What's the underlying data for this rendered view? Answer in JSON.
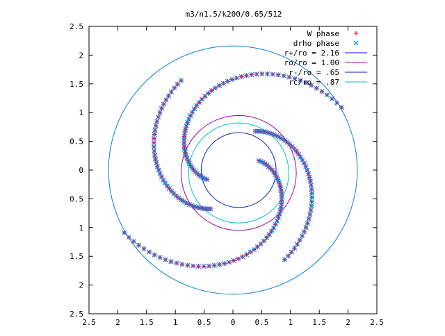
{
  "chart_data": {
    "type": "scatter",
    "title": "m3/n1.5/k200/0.65/512",
    "xlabel": "",
    "ylabel": "",
    "xlim": [
      -2.5,
      2.5
    ],
    "ylim": [
      -2.5,
      2.5
    ],
    "x_tick_values": [
      -2.5,
      -2,
      -1.5,
      -1,
      -0.5,
      0,
      0.5,
      1,
      1.5,
      2,
      2.5
    ],
    "x_tick_labels": [
      "2.5",
      "2",
      "1.5",
      "1",
      "0.5",
      "0",
      "0.5",
      "1",
      "1.5",
      "2",
      "2.5"
    ],
    "y_tick_values": [
      2.5,
      2,
      1.5,
      1,
      0.5,
      0,
      -0.5,
      -1,
      -1.5,
      -2,
      -2.5
    ],
    "y_tick_labels": [
      "2.5",
      "2",
      "1.5",
      "1",
      "0.5",
      "0",
      "0.5",
      "1",
      "1.5",
      "2",
      "2.5"
    ],
    "grid": false,
    "legend_position": "top-right",
    "legend": [
      {
        "label": "W phase",
        "marker": "plus",
        "color": "#ff0000"
      },
      {
        "label": "drho phase",
        "marker": "cross",
        "color": "#0080ff"
      },
      {
        "label": "r+/ro = 2.16",
        "marker": "line",
        "color": "#0000ff"
      },
      {
        "label": "ro/ro = 1.00",
        "marker": "line",
        "color": "#a000a0"
      },
      {
        "label": "r-/ro = .65",
        "marker": "line",
        "color": "#0020b0"
      },
      {
        "label": "rc/ro = .87",
        "marker": "line",
        "color": "#00c0c0"
      }
    ],
    "circles": [
      {
        "name": "r+/ro = 2.16",
        "cx": 0,
        "cy": 0,
        "r": 2.16,
        "color": "#0080d0"
      },
      {
        "name": "ro/ro = 1.00",
        "cx": 0.1,
        "cy": -0.05,
        "r": 1.0,
        "color": "#a000a0"
      },
      {
        "name": "r-/ro = .65",
        "cx": 0.1,
        "cy": 0.0,
        "r": 0.65,
        "color": "#0020b0"
      },
      {
        "name": "rc/ro = .87",
        "cx": 0.1,
        "cy": -0.05,
        "r": 0.87,
        "color": "#00c0c0"
      }
    ],
    "series": [
      {
        "name": "W phase",
        "marker": "plus",
        "color": "#ff0000",
        "arms": [
          {
            "r_start": 0.48,
            "r_end": 2.18,
            "theta_start_deg": 20,
            "theta_end_deg": -150,
            "points": 60
          },
          {
            "r_start": 0.48,
            "r_end": 2.18,
            "theta_start_deg": 200,
            "theta_end_deg": 30,
            "points": 60
          },
          {
            "r_start": 0.78,
            "r_end": 1.8,
            "theta_start_deg": 60,
            "theta_end_deg": -60,
            "points": 45
          },
          {
            "r_start": 0.78,
            "r_end": 1.8,
            "theta_start_deg": 240,
            "theta_end_deg": 120,
            "points": 45
          }
        ]
      },
      {
        "name": "drho phase",
        "marker": "cross",
        "color": "#0080ff",
        "arms": [
          {
            "r_start": 0.48,
            "r_end": 2.18,
            "theta_start_deg": 20,
            "theta_end_deg": -150,
            "points": 60
          },
          {
            "r_start": 0.48,
            "r_end": 2.18,
            "theta_start_deg": 200,
            "theta_end_deg": 30,
            "points": 60
          },
          {
            "r_start": 0.78,
            "r_end": 1.8,
            "theta_start_deg": 60,
            "theta_end_deg": -60,
            "points": 45
          },
          {
            "r_start": 0.78,
            "r_end": 1.8,
            "theta_start_deg": 240,
            "theta_end_deg": 120,
            "points": 45
          }
        ]
      }
    ]
  }
}
